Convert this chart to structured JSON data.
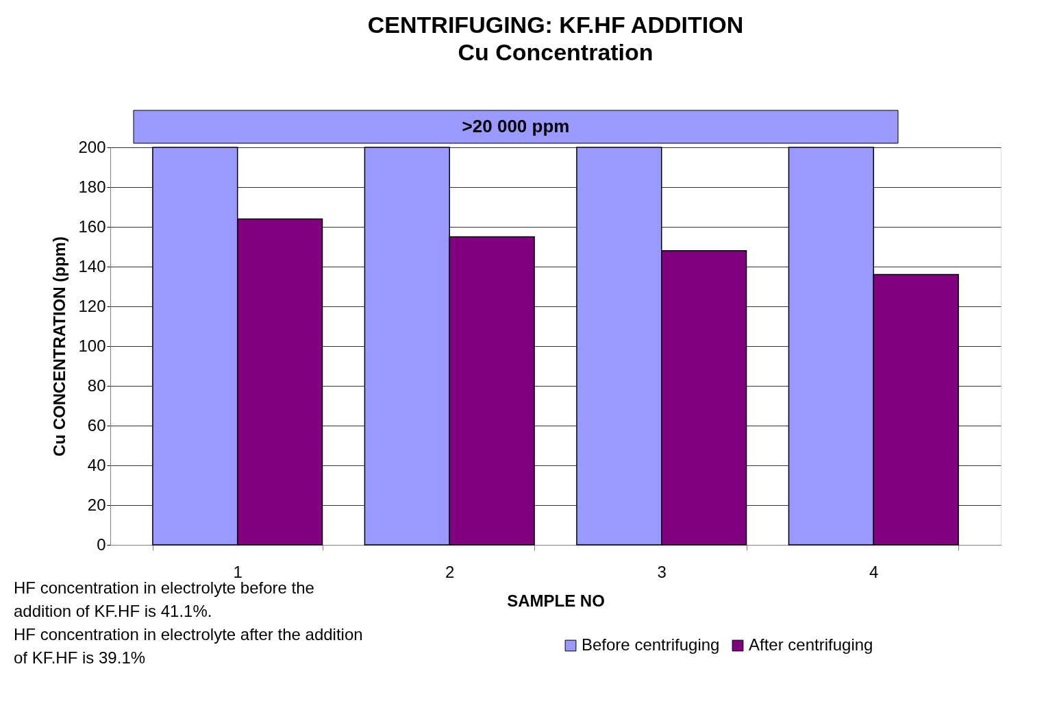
{
  "chart_data": {
    "type": "bar",
    "title": "CENTRIFUGING: KF.HF ADDITION",
    "subtitle": "Cu Concentration",
    "xlabel": "SAMPLE NO",
    "ylabel": "Cu CONCENTRATION (ppm)",
    "categories": [
      "1",
      "2",
      "3",
      "4"
    ],
    "series": [
      {
        "name": "Before centrifuging",
        "color": "#9999ff",
        "values": [
          200,
          200,
          200,
          200
        ]
      },
      {
        "name": "After centrifuging",
        "color": "#800080",
        "values": [
          164,
          155,
          148,
          136
        ]
      }
    ],
    "ylim": [
      0,
      200
    ],
    "yticks": [
      0,
      20,
      40,
      60,
      80,
      100,
      120,
      140,
      160,
      180,
      200
    ],
    "grid": "y",
    "legend": "bottom right",
    "annotations": [
      ">20 000 ppm",
      "HF concentration in electrolyte before the addition of KF.HF is 41.1%.",
      "HF concentration in electrolyte after the addition of KF.HF is 39.1%"
    ]
  }
}
